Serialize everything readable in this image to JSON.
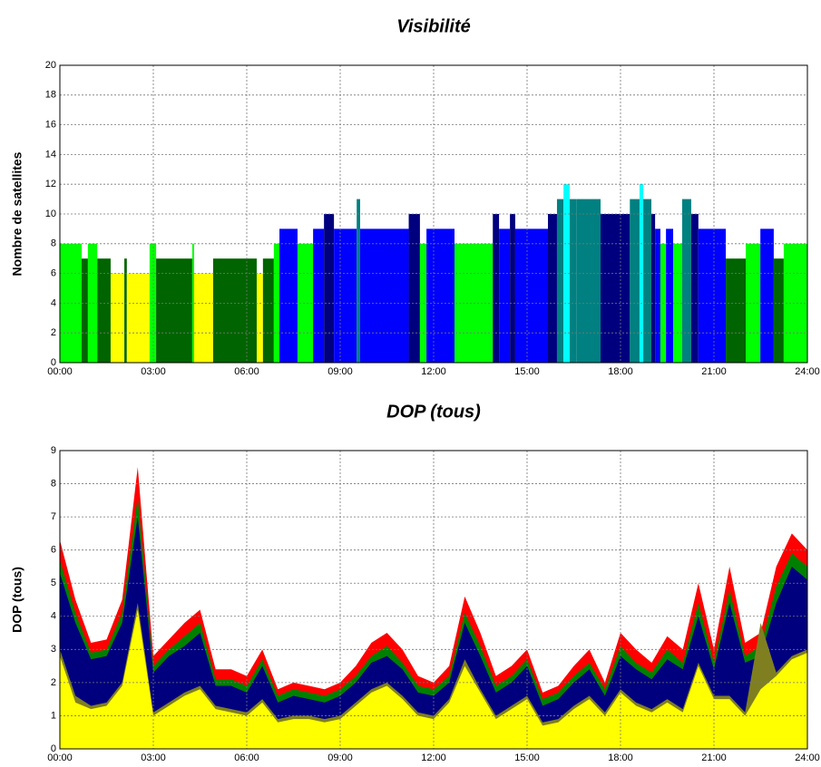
{
  "chart_data": [
    {
      "type": "step-bar",
      "title": "Visibilité",
      "y_label": "Nombre de satellites",
      "x": [
        0,
        0.7,
        0.9,
        1.2,
        1.63,
        2.07,
        2.15,
        2.88,
        3.09,
        4.25,
        4.31,
        4.92,
        6.32,
        6.52,
        6.87,
        7.05,
        7.63,
        8.13,
        8.48,
        8.8,
        9.53,
        9.64,
        11.2,
        11.56,
        11.77,
        12.67,
        13.9,
        14.1,
        14.45,
        14.62,
        15.67,
        15.96,
        16.17,
        16.37,
        16.58,
        17.36,
        18.3,
        18.61,
        18.73,
        18.99,
        19.11,
        19.28,
        19.46,
        19.69,
        19.98,
        20.27,
        20.5,
        21.38,
        22.02,
        22.49,
        22.92,
        23.24
      ],
      "values": [
        8,
        7,
        8,
        7,
        6,
        7,
        6,
        8,
        7,
        8,
        6,
        7,
        6,
        7,
        8,
        9,
        8,
        9,
        10,
        9,
        11,
        9,
        10,
        8,
        9,
        8,
        10,
        9,
        10,
        9,
        10,
        11,
        12,
        11,
        11,
        10,
        11,
        12,
        11,
        10,
        9,
        8,
        9,
        8,
        11,
        10,
        9,
        7,
        8,
        9,
        7,
        8
      ],
      "value_colors": {
        "6": "#ffff00",
        "7": "#006400",
        "8": "#00ff00",
        "9": "#0000ff",
        "10": "#00007f",
        "11": "#008080",
        "12": "#00ffff"
      },
      "xlim": [
        0,
        24
      ],
      "ylim": [
        0,
        20
      ],
      "xticks": [
        {
          "value": 0,
          "label": "00:00"
        },
        {
          "value": 3,
          "label": "03:00"
        },
        {
          "value": 6,
          "label": "06:00"
        },
        {
          "value": 9,
          "label": "09:00"
        },
        {
          "value": 12,
          "label": "12:00"
        },
        {
          "value": 15,
          "label": "15:00"
        },
        {
          "value": 18,
          "label": "18:00"
        },
        {
          "value": 21,
          "label": "21:00"
        },
        {
          "value": 24,
          "label": "24:00"
        }
      ],
      "yticks": [
        0,
        2,
        4,
        6,
        8,
        10,
        12,
        14,
        16,
        18,
        20
      ],
      "grid": true
    },
    {
      "type": "area",
      "title": "DOP (tous)",
      "y_label": "DOP (tous)",
      "x": [
        0,
        0.5,
        1,
        1.5,
        2,
        2.5,
        3,
        3.5,
        4,
        4.5,
        5,
        5.5,
        6,
        6.5,
        7,
        7.5,
        8,
        8.5,
        9,
        9.5,
        10,
        10.5,
        11,
        11.5,
        12,
        12.5,
        13,
        13.5,
        14,
        14.5,
        15,
        15.5,
        16,
        16.5,
        17,
        17.5,
        18,
        18.5,
        19,
        19.5,
        20,
        20.5,
        21,
        21.5,
        22,
        22.5,
        23,
        23.5,
        24
      ],
      "series": [
        {
          "color": "#ff0000",
          "values": [
            6.3,
            4.5,
            3.2,
            3.3,
            4.5,
            8.5,
            2.8,
            3.3,
            3.8,
            4.2,
            2.4,
            2.4,
            2.2,
            3.0,
            1.8,
            2.0,
            1.9,
            1.8,
            2.0,
            2.5,
            3.2,
            3.5,
            3.0,
            2.2,
            2.0,
            2.5,
            4.6,
            3.5,
            2.2,
            2.5,
            3.0,
            1.7,
            1.9,
            2.5,
            3.0,
            2.0,
            3.5,
            3.0,
            2.6,
            3.4,
            3.0,
            5.0,
            3.0,
            5.5,
            3.2,
            3.5,
            5.5,
            6.5,
            6.0
          ]
        },
        {
          "color": "#008000",
          "values": [
            5.7,
            4.1,
            2.9,
            3.0,
            4.1,
            7.6,
            2.5,
            3.0,
            3.4,
            3.8,
            2.1,
            2.1,
            1.9,
            2.7,
            1.6,
            1.8,
            1.7,
            1.6,
            1.8,
            2.2,
            2.8,
            3.1,
            2.6,
            1.9,
            1.8,
            2.2,
            4.1,
            3.1,
            1.9,
            2.2,
            2.7,
            1.5,
            1.7,
            2.2,
            2.6,
            1.8,
            3.1,
            2.6,
            2.3,
            3.0,
            2.6,
            4.4,
            2.6,
            4.8,
            2.8,
            3.1,
            4.9,
            5.9,
            5.5
          ]
        },
        {
          "color": "#00007f",
          "values": [
            5.3,
            3.8,
            2.7,
            2.8,
            3.8,
            7.0,
            2.3,
            2.8,
            3.1,
            3.5,
            1.9,
            1.9,
            1.7,
            2.5,
            1.4,
            1.6,
            1.5,
            1.4,
            1.6,
            2.0,
            2.6,
            2.8,
            2.4,
            1.7,
            1.6,
            2.0,
            3.8,
            2.8,
            1.7,
            2.0,
            2.5,
            1.3,
            1.5,
            2.0,
            2.4,
            1.6,
            2.8,
            2.4,
            2.1,
            2.7,
            2.4,
            4.0,
            2.4,
            4.4,
            2.6,
            2.8,
            4.4,
            5.5,
            5.1
          ]
        },
        {
          "color": "#7f7f20",
          "values": [
            3.0,
            1.6,
            1.3,
            1.4,
            2.0,
            4.4,
            1.1,
            1.4,
            1.7,
            1.9,
            1.3,
            1.2,
            1.1,
            1.5,
            0.9,
            1.0,
            1.0,
            0.9,
            1.0,
            1.4,
            1.8,
            2.0,
            1.6,
            1.1,
            1.0,
            1.5,
            2.7,
            1.8,
            1.0,
            1.3,
            1.6,
            0.8,
            0.9,
            1.3,
            1.6,
            1.1,
            1.8,
            1.4,
            1.2,
            1.5,
            1.2,
            2.6,
            1.6,
            1.6,
            1.1,
            3.8,
            2.3,
            2.8,
            3.0
          ]
        },
        {
          "color": "#ffff00",
          "values": [
            2.8,
            1.4,
            1.2,
            1.3,
            1.9,
            4.2,
            1.0,
            1.3,
            1.6,
            1.8,
            1.2,
            1.1,
            1.0,
            1.4,
            0.8,
            0.9,
            0.9,
            0.8,
            0.9,
            1.3,
            1.7,
            1.9,
            1.5,
            1.0,
            0.9,
            1.4,
            2.5,
            1.7,
            0.9,
            1.2,
            1.5,
            0.7,
            0.8,
            1.2,
            1.5,
            1.0,
            1.7,
            1.3,
            1.1,
            1.4,
            1.1,
            2.5,
            1.5,
            1.5,
            1.0,
            1.8,
            2.2,
            2.7,
            2.9
          ]
        }
      ],
      "xlim": [
        0,
        24
      ],
      "ylim": [
        0,
        9
      ],
      "xticks": [
        {
          "value": 0,
          "label": "00:00"
        },
        {
          "value": 3,
          "label": "03:00"
        },
        {
          "value": 6,
          "label": "06:00"
        },
        {
          "value": 9,
          "label": "09:00"
        },
        {
          "value": 12,
          "label": "12:00"
        },
        {
          "value": 15,
          "label": "15:00"
        },
        {
          "value": 18,
          "label": "18:00"
        },
        {
          "value": 21,
          "label": "21:00"
        },
        {
          "value": 24,
          "label": "24:00"
        }
      ],
      "yticks": [
        0,
        1,
        2,
        3,
        4,
        5,
        6,
        7,
        8,
        9
      ],
      "grid": true
    }
  ]
}
